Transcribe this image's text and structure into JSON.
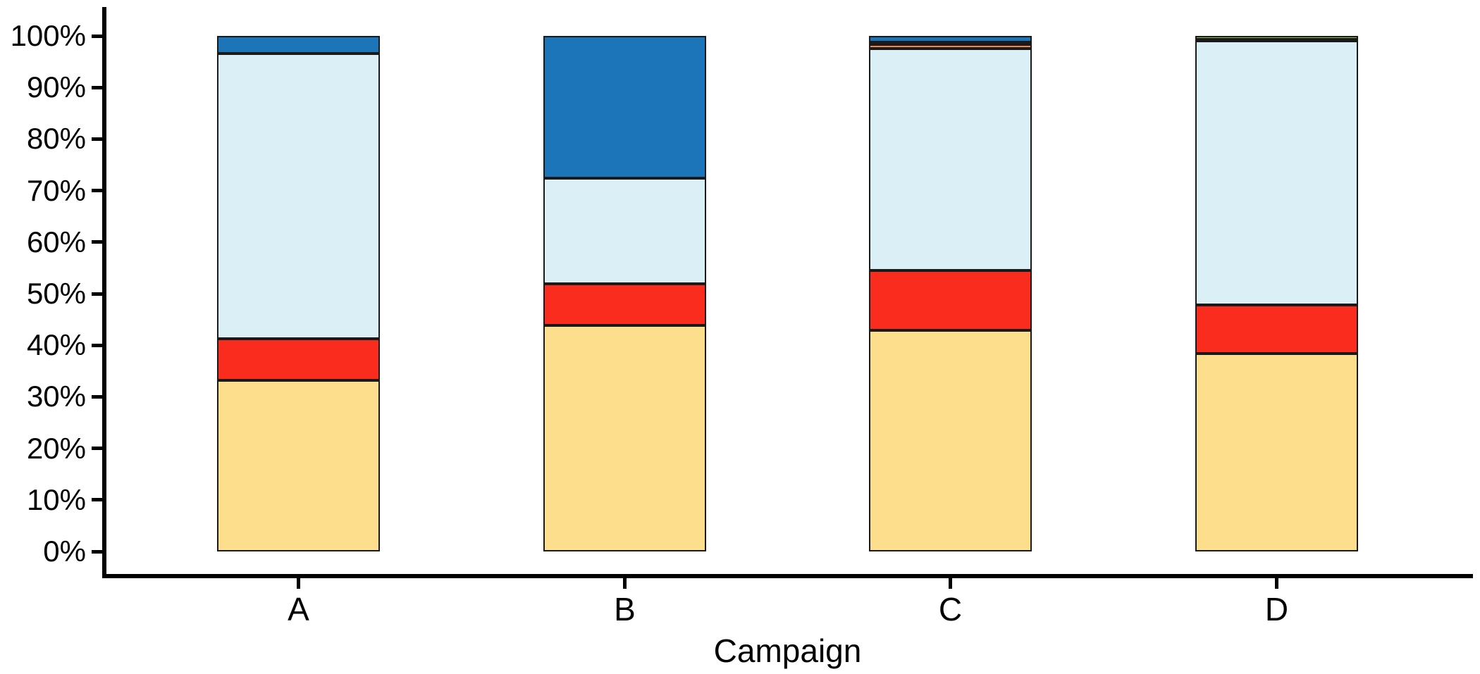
{
  "chart_data": {
    "type": "bar",
    "subtype": "stacked-100-percent",
    "title": "",
    "xlabel": "Campaign",
    "ylabel": "",
    "categories": [
      "A",
      "B",
      "C",
      "D"
    ],
    "y_ticks": {
      "values": [
        0,
        10,
        20,
        30,
        40,
        50,
        60,
        70,
        80,
        90,
        100
      ],
      "labels": [
        "0%",
        "10%",
        "20%",
        "30%",
        "40%",
        "50%",
        "60%",
        "70%",
        "80%",
        "90%",
        "100%"
      ]
    },
    "ylim": [
      0,
      100
    ],
    "grid": false,
    "legend": "none",
    "stack_order_bottom_to_top": [
      "gold",
      "red",
      "light-blue",
      "orange",
      "green",
      "dark-blue"
    ],
    "series": [
      {
        "name": "gold",
        "color": "#FDDE8C",
        "values": [
          33.2,
          43.9,
          42.9,
          38.4
        ]
      },
      {
        "name": "red",
        "color": "#F92C1E",
        "values": [
          8.0,
          8.0,
          11.6,
          9.4
        ]
      },
      {
        "name": "light-blue",
        "color": "#DBEFF6",
        "values": [
          55.4,
          20.5,
          43.0,
          51.2
        ]
      },
      {
        "name": "orange",
        "color": "#F6873F",
        "values": [
          0,
          0,
          0.8,
          0.35
        ]
      },
      {
        "name": "green",
        "color": "#86C440",
        "values": [
          0,
          0,
          0.45,
          0.65
        ]
      },
      {
        "name": "dark-blue",
        "color": "#1B75B8",
        "values": [
          3.4,
          27.6,
          1.25,
          0
        ]
      }
    ],
    "segment_border_color": "#1a1a1a",
    "axis_color": "#000000"
  }
}
